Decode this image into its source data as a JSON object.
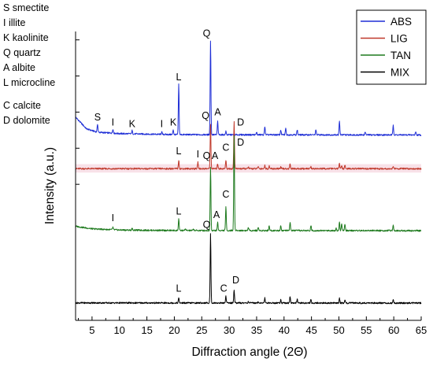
{
  "chart_data": {
    "type": "line",
    "xlabel": "Diffraction angle (2Θ)",
    "ylabel": "Intensity (a.u.)",
    "xlim": [
      2,
      65
    ],
    "x_ticks": [
      5,
      10,
      15,
      20,
      25,
      30,
      35,
      40,
      45,
      50,
      55,
      60,
      65
    ],
    "y_ticks_shown": false,
    "grid": false,
    "legend_position": "top-right",
    "mineral_key": [
      "S smectite",
      "I illite",
      "K kaolinite",
      "Q quartz",
      "A albite",
      "L microcline",
      "C calcite",
      "D dolomite"
    ],
    "series": [
      {
        "name": "ABS",
        "color": "#1f2fd6",
        "baseline": 0,
        "background": [
          [
            2,
            11
          ],
          [
            4,
            4
          ],
          [
            6,
            2
          ],
          [
            10,
            1.2
          ],
          [
            20,
            0.6
          ],
          [
            30,
            0.5
          ],
          [
            65,
            0.4
          ]
        ],
        "peaks": [
          [
            6,
            5
          ],
          [
            8.8,
            2.5
          ],
          [
            12.3,
            2
          ],
          [
            17.7,
            1.5
          ],
          [
            19.8,
            3
          ],
          [
            20.8,
            30
          ],
          [
            26.6,
            56
          ],
          [
            27.9,
            8
          ],
          [
            29.4,
            2
          ],
          [
            35,
            1.5
          ],
          [
            36.5,
            5
          ],
          [
            39.4,
            3
          ],
          [
            40.3,
            4
          ],
          [
            42.4,
            3
          ],
          [
            45.8,
            3
          ],
          [
            50.1,
            8
          ],
          [
            54.8,
            2
          ],
          [
            59.9,
            6
          ],
          [
            64,
            2
          ]
        ],
        "labels": [
          {
            "text": "S",
            "x": 6,
            "h": 9
          },
          {
            "text": "I",
            "x": 8.8,
            "h": 6
          },
          {
            "text": "K",
            "x": 12.3,
            "h": 5
          },
          {
            "text": "I",
            "x": 17.7,
            "h": 5
          },
          {
            "text": "K",
            "x": 19.8,
            "h": 6
          },
          {
            "text": "L",
            "x": 20.8,
            "h": 33
          },
          {
            "text": "Q",
            "x": 25.9,
            "h": 59
          },
          {
            "text": "A",
            "x": 27.9,
            "h": 12
          }
        ]
      },
      {
        "name": "LIG",
        "color": "#c0392b",
        "baseline": -20,
        "background": [
          [
            2,
            0.3
          ],
          [
            65,
            0.3
          ]
        ],
        "peaks": [
          [
            20.8,
            5
          ],
          [
            24.3,
            4
          ],
          [
            26.6,
            26
          ],
          [
            27.9,
            3
          ],
          [
            29.4,
            5
          ],
          [
            30.9,
            28
          ],
          [
            33.5,
            1
          ],
          [
            35.3,
            1.5
          ],
          [
            36.5,
            2
          ],
          [
            37.3,
            1.5
          ],
          [
            39.4,
            1
          ],
          [
            41.1,
            3
          ],
          [
            44.9,
            1
          ],
          [
            50.1,
            3
          ],
          [
            50.5,
            2
          ],
          [
            51.1,
            2
          ],
          [
            59.9,
            1.5
          ]
        ],
        "labels": [
          {
            "text": "L",
            "x": 20.8,
            "h": 9
          },
          {
            "text": "I",
            "x": 24.3,
            "h": 7
          },
          {
            "text": "Q",
            "x": 25.7,
            "h": 30
          },
          {
            "text": "A",
            "x": 27.4,
            "h": 6
          },
          {
            "text": "C",
            "x": 29.4,
            "h": 11
          },
          {
            "text": "D",
            "x": 32.1,
            "h": 26
          }
        ]
      },
      {
        "name": "TAN",
        "color": "#1e7a1e",
        "baseline": -57,
        "background": [
          [
            2,
            3
          ],
          [
            5,
            1.5
          ],
          [
            10,
            0.8
          ],
          [
            20,
            0.5
          ],
          [
            65,
            0.4
          ]
        ],
        "peaks": [
          [
            8.8,
            1.5
          ],
          [
            12.3,
            1
          ],
          [
            20.8,
            7
          ],
          [
            22,
            1
          ],
          [
            23.5,
            1
          ],
          [
            26.6,
            38
          ],
          [
            27.9,
            5
          ],
          [
            29.4,
            14
          ],
          [
            30.9,
            56
          ],
          [
            33.5,
            2
          ],
          [
            35.3,
            2
          ],
          [
            37.3,
            3
          ],
          [
            39.4,
            3
          ],
          [
            41.1,
            5
          ],
          [
            44.9,
            3
          ],
          [
            49.5,
            1.5
          ],
          [
            50.1,
            5
          ],
          [
            50.5,
            4
          ],
          [
            51.1,
            4
          ],
          [
            59.9,
            3
          ]
        ],
        "labels": [
          {
            "text": "I",
            "x": 8.8,
            "h": 6
          },
          {
            "text": "L",
            "x": 20.8,
            "h": 10
          },
          {
            "text": "Q",
            "x": 25.9,
            "h": 43
          },
          {
            "text": "A",
            "x": 27.7,
            "h": 8
          },
          {
            "text": "C",
            "x": 29.4,
            "h": 20
          },
          {
            "text": "D",
            "x": 32.1,
            "h": 51
          }
        ]
      },
      {
        "name": "MIX",
        "color": "#000000",
        "baseline": -100,
        "background": [
          [
            2,
            0.4
          ],
          [
            65,
            0.3
          ]
        ],
        "peaks": [
          [
            20.8,
            3
          ],
          [
            26.6,
            41
          ],
          [
            29.4,
            4
          ],
          [
            30.9,
            8
          ],
          [
            33.5,
            1
          ],
          [
            35.3,
            1
          ],
          [
            36.5,
            3
          ],
          [
            39.4,
            2
          ],
          [
            41.1,
            4
          ],
          [
            42.4,
            2
          ],
          [
            44.9,
            2
          ],
          [
            50.1,
            3
          ],
          [
            51.1,
            2
          ],
          [
            59.9,
            2
          ]
        ],
        "labels": [
          {
            "text": "L",
            "x": 20.8,
            "h": 7
          },
          {
            "text": "Q",
            "x": 25.9,
            "h": 45
          },
          {
            "text": "C",
            "x": 29,
            "h": 7
          },
          {
            "text": "D",
            "x": 31.2,
            "h": 12
          }
        ]
      }
    ]
  }
}
